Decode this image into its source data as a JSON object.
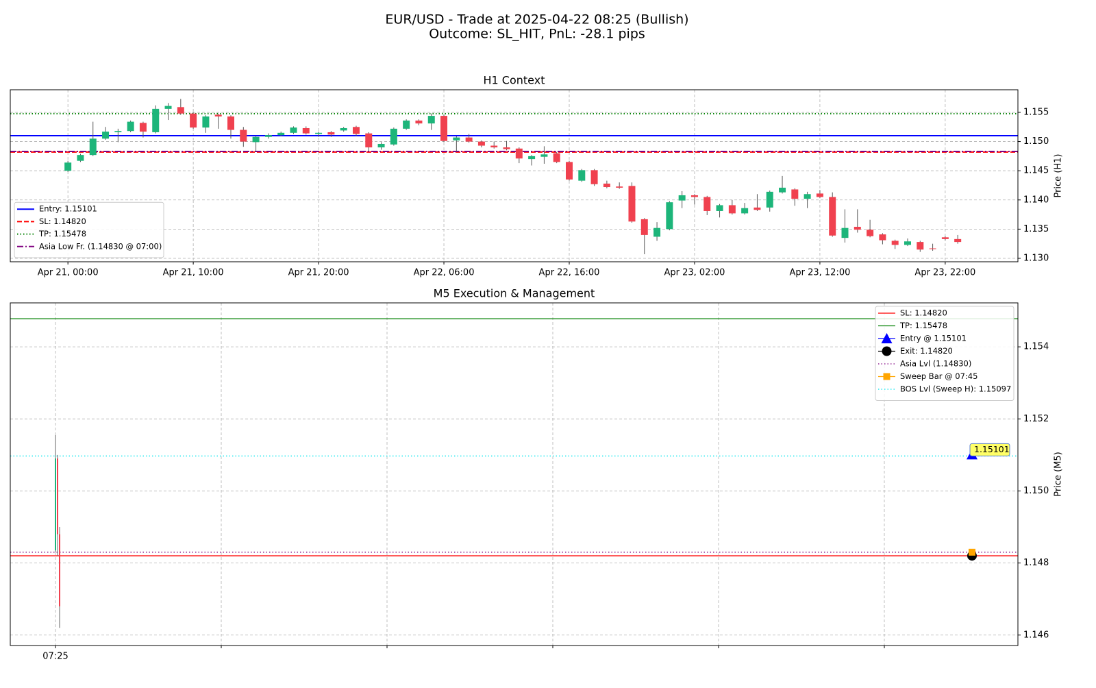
{
  "title": "EUR/USD - Trade at 2025-04-22 08:25 (Bullish)",
  "subtitle": "Outcome: SL_HIT, PnL: -28.1 pips",
  "chart_data": [
    {
      "type": "candlestick",
      "title": "H1 Context",
      "y_label": "Price (H1)",
      "up_color": "#1db57a",
      "down_color": "#f0414f",
      "grid": true,
      "legend": "lower left",
      "x": [
        "Apr 21, 00:00",
        "Apr 21, 01:00",
        "Apr 21, 02:00",
        "Apr 21, 03:00",
        "Apr 21, 04:00",
        "Apr 21, 05:00",
        "Apr 21, 06:00",
        "Apr 21, 07:00",
        "Apr 21, 08:00",
        "Apr 21, 09:00",
        "Apr 21, 10:00",
        "Apr 21, 11:00",
        "Apr 21, 12:00",
        "Apr 21, 13:00",
        "Apr 21, 14:00",
        "Apr 21, 15:00",
        "Apr 21, 16:00",
        "Apr 21, 17:00",
        "Apr 21, 18:00",
        "Apr 21, 19:00",
        "Apr 21, 20:00",
        "Apr 21, 21:00",
        "Apr 21, 22:00",
        "Apr 21, 23:00",
        "Apr 22, 00:00",
        "Apr 22, 01:00",
        "Apr 22, 02:00",
        "Apr 22, 03:00",
        "Apr 22, 04:00",
        "Apr 22, 05:00",
        "Apr 22, 06:00",
        "Apr 22, 07:00",
        "Apr 22, 08:00",
        "Apr 22, 09:00",
        "Apr 22, 10:00",
        "Apr 22, 11:00",
        "Apr 22, 12:00",
        "Apr 22, 13:00",
        "Apr 22, 14:00",
        "Apr 22, 15:00",
        "Apr 22, 16:00",
        "Apr 22, 17:00",
        "Apr 22, 18:00",
        "Apr 22, 19:00",
        "Apr 22, 20:00",
        "Apr 22, 21:00",
        "Apr 22, 22:00",
        "Apr 22, 23:00",
        "Apr 23, 00:00",
        "Apr 23, 01:00",
        "Apr 23, 02:00",
        "Apr 23, 03:00",
        "Apr 23, 04:00",
        "Apr 23, 05:00",
        "Apr 23, 06:00",
        "Apr 23, 07:00",
        "Apr 23, 08:00",
        "Apr 23, 09:00",
        "Apr 23, 10:00",
        "Apr 23, 11:00",
        "Apr 23, 12:00",
        "Apr 23, 13:00",
        "Apr 23, 14:00",
        "Apr 23, 15:00",
        "Apr 23, 16:00",
        "Apr 23, 17:00",
        "Apr 23, 18:00",
        "Apr 23, 19:00",
        "Apr 23, 20:00",
        "Apr 23, 21:00",
        "Apr 23, 22:00",
        "Apr 23, 23:00"
      ],
      "open": [
        1.145,
        1.1467,
        1.1477,
        1.1505,
        1.1516,
        1.1518,
        1.1532,
        1.1516,
        1.1556,
        1.1559,
        1.1548,
        1.1524,
        1.1546,
        1.1543,
        1.152,
        1.1499,
        1.1508,
        1.1511,
        1.1515,
        1.1523,
        1.1513,
        1.1516,
        1.1519,
        1.1525,
        1.1514,
        1.149,
        1.1495,
        1.1522,
        1.1536,
        1.1531,
        1.1544,
        1.1502,
        1.1507,
        1.15,
        1.1493,
        1.149,
        1.1488,
        1.147,
        1.1474,
        1.148,
        1.1465,
        1.1433,
        1.1451,
        1.1428,
        1.1423,
        1.1424,
        1.1367,
        1.1337,
        1.135,
        1.1399,
        1.1408,
        1.1405,
        1.1381,
        1.1391,
        1.1377,
        1.1387,
        1.1387,
        1.1413,
        1.1418,
        1.1402,
        1.1411,
        1.1405,
        1.1335,
        1.1354,
        1.1349,
        1.1341,
        1.133,
        1.1323,
        1.1328,
        1.1317,
        1.1336,
        1.1333
      ],
      "high": [
        1.1467,
        1.1479,
        1.1534,
        1.1525,
        1.1522,
        1.1536,
        1.1534,
        1.1562,
        1.1566,
        1.1573,
        1.155,
        1.1545,
        1.1548,
        1.1545,
        1.1525,
        1.151,
        1.1514,
        1.1517,
        1.1526,
        1.1526,
        1.1517,
        1.1518,
        1.1525,
        1.1527,
        1.1516,
        1.1499,
        1.1524,
        1.1538,
        1.1538,
        1.1548,
        1.1546,
        1.1509,
        1.1513,
        1.1502,
        1.15,
        1.1501,
        1.149,
        1.1477,
        1.1492,
        1.1482,
        1.1467,
        1.1453,
        1.1453,
        1.1433,
        1.143,
        1.143,
        1.1369,
        1.1362,
        1.1398,
        1.1415,
        1.141,
        1.1407,
        1.1393,
        1.14,
        1.1395,
        1.141,
        1.1416,
        1.1441,
        1.142,
        1.1414,
        1.1417,
        1.1413,
        1.1384,
        1.1384,
        1.1366,
        1.1343,
        1.1332,
        1.1334,
        1.133,
        1.1325,
        1.1338,
        1.134
      ],
      "low": [
        1.1448,
        1.1465,
        1.1475,
        1.1503,
        1.1499,
        1.1516,
        1.1507,
        1.1514,
        1.1537,
        1.1546,
        1.1522,
        1.1515,
        1.1522,
        1.1505,
        1.1491,
        1.1483,
        1.1505,
        1.1509,
        1.1513,
        1.1512,
        1.1508,
        1.1508,
        1.1517,
        1.1509,
        1.1484,
        1.1486,
        1.1493,
        1.152,
        1.1528,
        1.152,
        1.1499,
        1.1483,
        1.1498,
        1.149,
        1.1488,
        1.1485,
        1.1463,
        1.1459,
        1.1462,
        1.1463,
        1.1433,
        1.1431,
        1.1424,
        1.142,
        1.1419,
        1.1361,
        1.1307,
        1.133,
        1.1348,
        1.1386,
        1.1392,
        1.1374,
        1.137,
        1.1375,
        1.1375,
        1.1381,
        1.138,
        1.1411,
        1.139,
        1.1386,
        1.1403,
        1.1337,
        1.1327,
        1.1344,
        1.1336,
        1.1324,
        1.1316,
        1.1321,
        1.1311,
        1.1313,
        1.1331,
        1.1325
      ],
      "close": [
        1.1464,
        1.1477,
        1.1505,
        1.1517,
        1.1518,
        1.1534,
        1.1517,
        1.1556,
        1.1561,
        1.1548,
        1.1524,
        1.1543,
        1.1543,
        1.152,
        1.15,
        1.1508,
        1.1511,
        1.1515,
        1.1524,
        1.1514,
        1.1515,
        1.1512,
        1.1523,
        1.1513,
        1.149,
        1.1496,
        1.1522,
        1.1536,
        1.1531,
        1.1544,
        1.1501,
        1.1507,
        1.15,
        1.1493,
        1.149,
        1.1487,
        1.1471,
        1.1475,
        1.1478,
        1.1465,
        1.1435,
        1.1451,
        1.1427,
        1.1422,
        1.1421,
        1.1363,
        1.134,
        1.1352,
        1.1396,
        1.1408,
        1.1405,
        1.1381,
        1.1391,
        1.1377,
        1.1386,
        1.1383,
        1.1414,
        1.1421,
        1.1402,
        1.141,
        1.1405,
        1.1339,
        1.1352,
        1.1349,
        1.1338,
        1.1331,
        1.1323,
        1.1329,
        1.1315,
        1.1316,
        1.1333,
        1.1328
      ],
      "xlim": [
        "Apr 20, 19:24",
        "Apr 24, 03:48"
      ],
      "xticks": [
        "Apr 21, 00:00",
        "Apr 21, 10:00",
        "Apr 21, 20:00",
        "Apr 22, 06:00",
        "Apr 22, 16:00",
        "Apr 23, 02:00",
        "Apr 23, 12:00",
        "Apr 23, 22:00"
      ],
      "ylim": [
        1.12941,
        1.15887
      ],
      "yticks": [
        {
          "value": 1.13,
          "label": "1.130"
        },
        1.135,
        {
          "value": 1.14,
          "label": "1.140"
        },
        1.145,
        {
          "value": 1.15,
          "label": "1.150"
        },
        1.155
      ],
      "overlays": [
        {
          "name": "Entry: 1.15101",
          "value": 1.15101,
          "color": "#0000ff",
          "style": "solid"
        },
        {
          "name": "SL: 1.14820",
          "value": 1.1482,
          "color": "#ff0000",
          "style": "dashed"
        },
        {
          "name": "TP: 1.15478",
          "value": 1.15478,
          "color": "#008000",
          "style": "dotted"
        },
        {
          "name": "Asia Low Fr. (1.14830 @ 07:00)",
          "value": 1.1483,
          "color": "#800080",
          "style": "dashdot"
        }
      ]
    },
    {
      "type": "candlestick",
      "title": "M5 Execution & Management",
      "y_label": "Price (M5)",
      "up_color": "#1db57a",
      "down_color": "#f0414f",
      "grid": true,
      "legend": "upper right",
      "open": [
        1.14835,
        1.1509,
        1.1488
      ],
      "high": [
        1.15155,
        1.151,
        1.149
      ],
      "low": [
        1.1483,
        1.1482,
        1.1462
      ],
      "close": [
        1.1509,
        1.1488,
        1.1468
      ],
      "xtick_labels": [
        "07:25",
        null,
        null,
        null,
        null,
        null
      ],
      "ylim": [
        1.14571,
        1.15522
      ],
      "yticks": [
        1.146,
        1.148,
        {
          "value": 1.15,
          "label": "1.150"
        },
        1.152,
        1.154
      ],
      "overlays": [
        {
          "name": "SL: 1.14820",
          "value": 1.1482,
          "color": "#ff0000",
          "style": "solid"
        },
        {
          "name": "TP: 1.15478",
          "value": 1.15478,
          "color": "#008000",
          "style": "solid"
        },
        {
          "name": "Entry @ 1.15101",
          "value": 1.15101,
          "color": "#0000ff",
          "marker": "triangle",
          "annotate": true
        },
        {
          "name": "Exit: 1.14820",
          "value": 1.1482,
          "color": "#000000",
          "marker": "circle"
        },
        {
          "name": "Asia Lvl (1.14830)",
          "value": 1.1483,
          "color": "#800080",
          "style": "dotted"
        },
        {
          "name": "Sweep Bar @ 07:45",
          "value": 1.1483,
          "color": "#ffa500",
          "marker": "square"
        },
        {
          "name": "BOS Lvl (Sweep H): 1.15097",
          "value": 1.15097,
          "color": "#00e5ee",
          "style": "dotted"
        }
      ]
    }
  ]
}
